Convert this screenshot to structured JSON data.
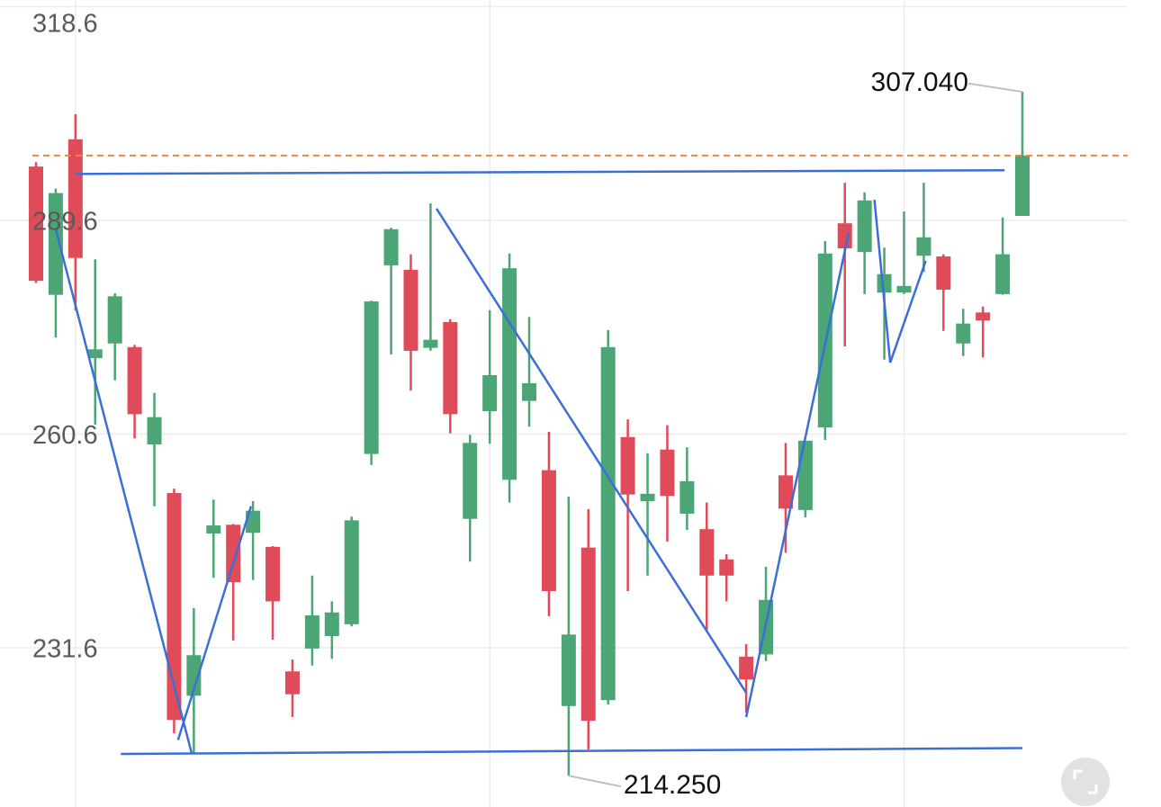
{
  "chart_data": {
    "type": "candlestick",
    "categories": [
      null,
      null,
      null,
      null,
      null,
      null,
      null,
      null,
      null,
      null,
      null,
      null,
      null,
      null,
      null,
      null,
      null,
      null,
      null,
      null,
      null,
      null,
      null,
      null,
      null,
      null,
      null,
      null,
      null,
      null,
      null,
      null,
      null,
      null,
      null,
      null,
      null,
      null,
      null,
      null,
      null,
      null,
      null,
      null,
      null,
      null,
      null,
      null,
      null,
      null,
      null
    ],
    "open": [
      296.9,
      279.5,
      300.6,
      270.9,
      272.9,
      272.4,
      259.2,
      252.6,
      225.1,
      247.1,
      248.3,
      247.2,
      245.3,
      228.4,
      231.5,
      233.2,
      234.8,
      257.9,
      283.5,
      282.9,
      272.3,
      275.8,
      249.1,
      263.7,
      254.4,
      265.1,
      255.7,
      223.7,
      245.2,
      224.5,
      260.2,
      251.5,
      258.5,
      249.8,
      247.7,
      243.6,
      230.4,
      230.7,
      255.0,
      250.3,
      261.5,
      289.2,
      285.3,
      279.8,
      279.8,
      284.8,
      284.7,
      272.9,
      277.1,
      279.6,
      290.2
    ],
    "high": [
      297.5,
      293.9,
      304.0,
      284.3,
      279.7,
      272.7,
      266.2,
      253.2,
      237.0,
      251.7,
      248.4,
      251.5,
      245.4,
      230.0,
      241.4,
      237.9,
      249.4,
      278.7,
      288.6,
      285.0,
      291.9,
      276.2,
      260.5,
      277.4,
      285.1,
      276.5,
      260.9,
      252.1,
      250.4,
      274.7,
      262.6,
      258.0,
      261.8,
      258.8,
      251.3,
      244.3,
      232.1,
      242.6,
      259.4,
      259.7,
      286.8,
      294.7,
      293.4,
      285.9,
      290.8,
      294.7,
      285.0,
      277.6,
      277.9,
      290.0,
      307.04
    ],
    "low": [
      281.1,
      273.7,
      277.4,
      261.9,
      267.9,
      260.0,
      250.8,
      220.0,
      217.2,
      241.1,
      232.6,
      240.8,
      232.7,
      222.2,
      229.2,
      230.1,
      234.5,
      256.4,
      271.4,
      266.5,
      271.9,
      260.7,
      243.3,
      259.3,
      251.3,
      261.6,
      235.9,
      214.25,
      217.8,
      223.9,
      239.3,
      241.4,
      246.0,
      247.6,
      234.0,
      237.9,
      222.8,
      229.8,
      244.5,
      249.3,
      259.8,
      272.5,
      279.6,
      270.7,
      279.6,
      282.6,
      274.6,
      271.2,
      271.0,
      279.5,
      290.2
    ],
    "close": [
      281.4,
      293.3,
      284.5,
      272.1,
      279.3,
      263.3,
      262.9,
      221.8,
      230.6,
      248.2,
      240.5,
      250.2,
      237.9,
      225.3,
      236.0,
      236.4,
      248.9,
      278.6,
      288.4,
      271.9,
      273.4,
      263.3,
      259.4,
      268.6,
      283.1,
      267.5,
      239.3,
      233.4,
      221.7,
      272.4,
      252.4,
      252.5,
      252.2,
      254.2,
      241.4,
      241.4,
      227.3,
      238.1,
      250.5,
      259.7,
      285.1,
      285.8,
      292.3,
      282.3,
      280.7,
      287.3,
      280.2,
      275.6,
      276.0,
      285.0,
      298.4
    ],
    "up_color": "#4ca574",
    "down_color": "#e04b5a",
    "ylim": [
      210.0,
      319.5
    ],
    "yticks": [
      231.6,
      260.6,
      289.6,
      318.6
    ],
    "grid": true,
    "last_price": 298.4,
    "last_price_color": "#e8894a",
    "max_annotation": {
      "value": 307.04,
      "label": "307.040"
    },
    "min_annotation": {
      "value": 214.25,
      "label": "214.250"
    },
    "trendline_color": "#3b6fd8",
    "trendlines": [
      {
        "x": [
          2,
          49.1
        ],
        "y": [
          295.9,
          296.4
        ]
      },
      {
        "x": [
          4.3,
          50
        ],
        "y": [
          217.2,
          218.0
        ]
      },
      {
        "x": [
          1,
          7.9
        ],
        "y": [
          288.4,
          217.2
        ]
      },
      {
        "x": [
          7.2,
          10.9
        ],
        "y": [
          219.1,
          250.8
        ]
      },
      {
        "x": [
          20.3,
          36
        ],
        "y": [
          291.2,
          225.5
        ]
      },
      {
        "x": [
          36,
          41.2
        ],
        "y": [
          222.2,
          288.0
        ]
      },
      {
        "x": [
          42.5,
          43.3
        ],
        "y": [
          292.4,
          270.3
        ]
      },
      {
        "x": [
          43.3,
          45.1
        ],
        "y": [
          270.3,
          284.1
        ]
      }
    ]
  }
}
